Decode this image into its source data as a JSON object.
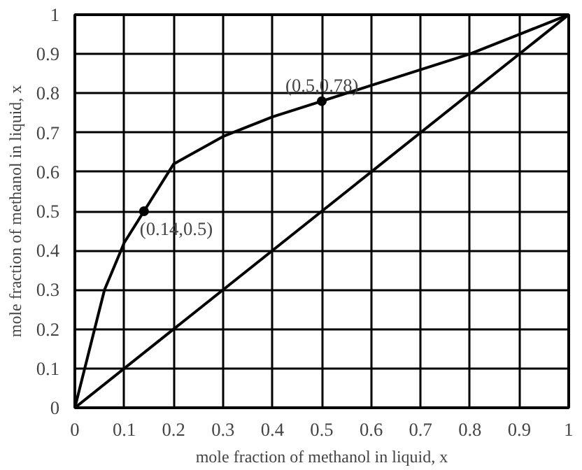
{
  "chart_data": {
    "type": "line",
    "xlabel": "mole fraction of methanol in liquid, x",
    "ylabel": "mole fraction of methanol in liquid, x",
    "xlim": [
      0,
      1
    ],
    "ylim": [
      0,
      1
    ],
    "xticks": [
      0,
      0.1,
      0.2,
      0.3,
      0.4,
      0.5,
      0.6,
      0.7,
      0.8,
      0.9,
      1
    ],
    "yticks": [
      0,
      0.1,
      0.2,
      0.3,
      0.4,
      0.5,
      0.6,
      0.7,
      0.8,
      0.9,
      1
    ],
    "grid": true,
    "marker": "none",
    "line_style": "solid",
    "series": [
      {
        "color": "#000000",
        "x": [
          0,
          0.02,
          0.04,
          0.06,
          0.1,
          0.14,
          0.2,
          0.3,
          0.4,
          0.5,
          0.6,
          0.7,
          0.8,
          0.9,
          1
        ],
        "values": [
          0,
          0.1,
          0.2,
          0.3,
          0.42,
          0.5,
          0.62,
          0.69,
          0.74,
          0.78,
          0.82,
          0.86,
          0.9,
          0.95,
          1
        ]
      },
      {
        "color": "#000000",
        "x": [
          0,
          1
        ],
        "values": [
          0,
          1
        ]
      },
      {
        "type": "scatter",
        "marker": "circle",
        "color": "#000000",
        "x": [
          0.14,
          0.5
        ],
        "values": [
          0.5,
          0.78
        ]
      }
    ],
    "annotations": [
      {
        "text": "(0.14,0.5)",
        "x": 0.14,
        "y": 0.5
      },
      {
        "text": "(0.5,0.78)",
        "x": 0.5,
        "y": 0.78
      }
    ]
  }
}
